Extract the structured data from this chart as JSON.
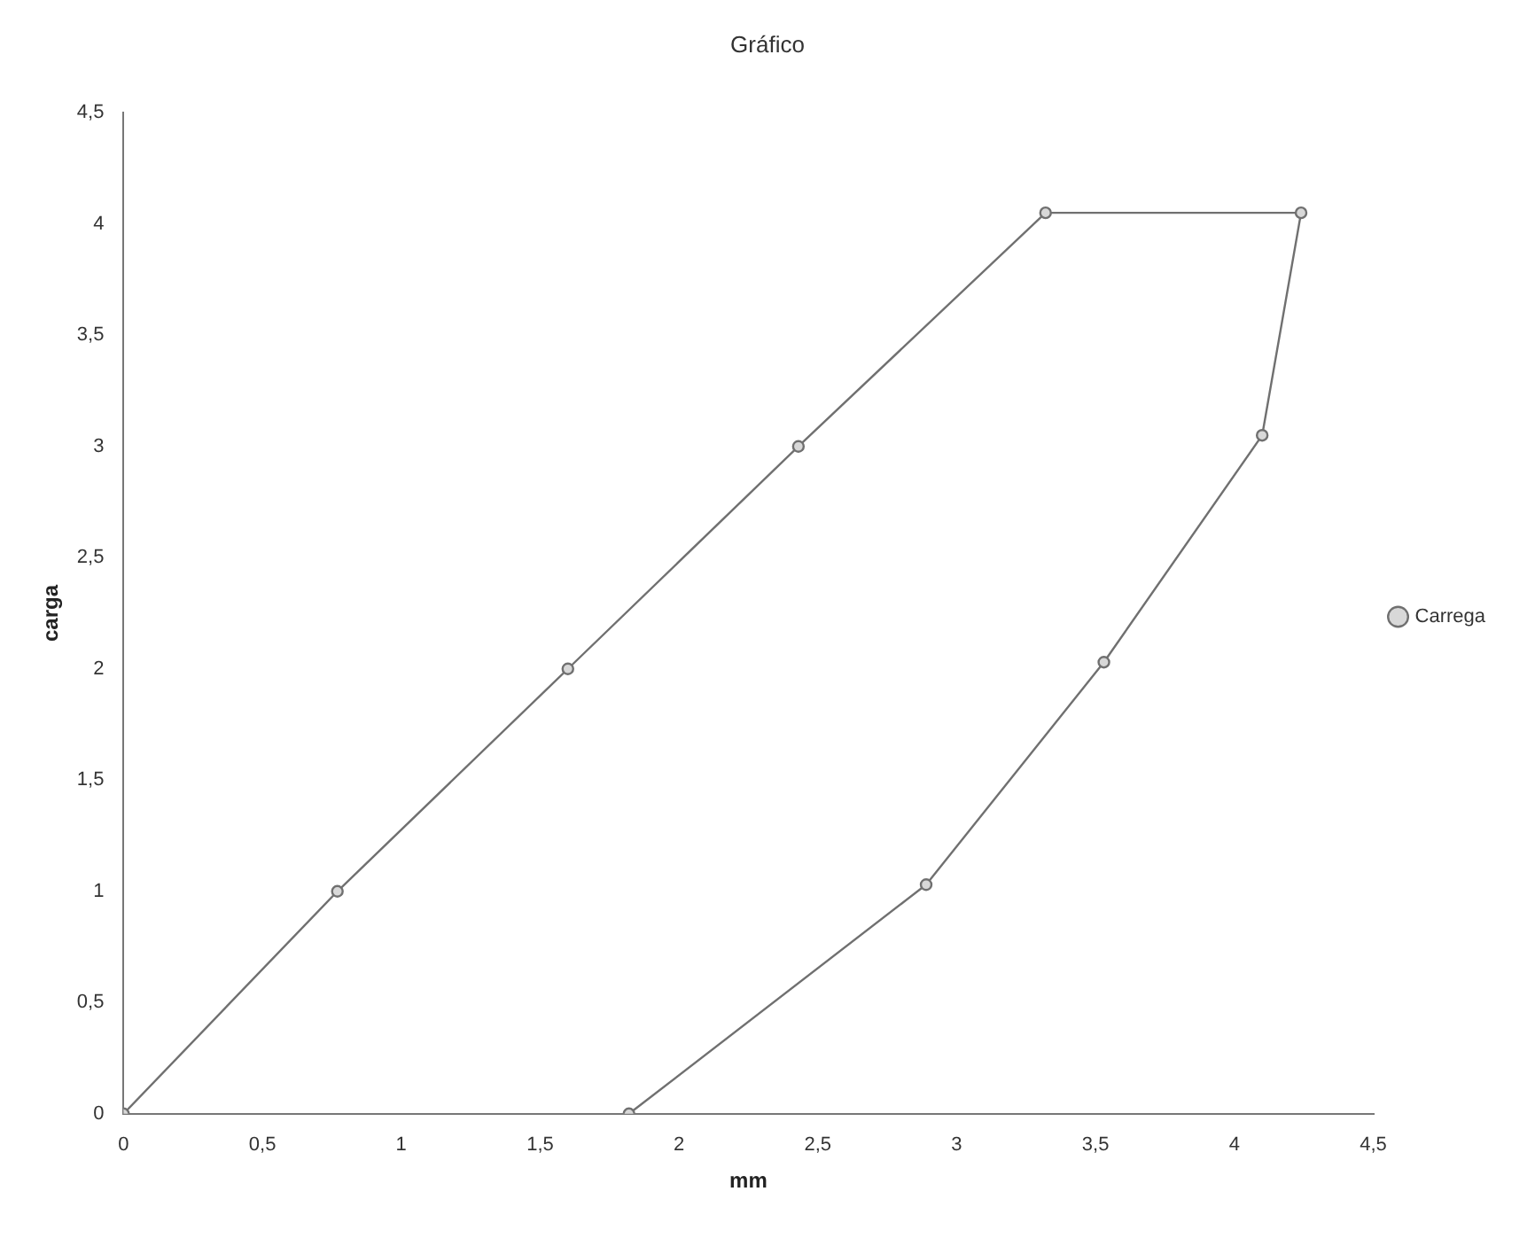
{
  "chart_data": {
    "type": "line",
    "title": "Gráfico",
    "xlabel": "mm",
    "ylabel": "carga",
    "series": [
      {
        "name": "Carrega",
        "color": "#707070",
        "x": [
          0,
          0.77,
          1.6,
          2.43,
          3.32,
          4.24,
          4.1,
          3.53,
          2.89,
          1.82
        ],
        "values": [
          0,
          1,
          2,
          3,
          4.05,
          4.05,
          3.05,
          2.03,
          1.03,
          0
        ]
      }
    ],
    "xlim": [
      0,
      4.5
    ],
    "ylim": [
      0,
      4.5
    ],
    "xticks": [
      0,
      {
        "value": 0.5,
        "label": "0,5"
      },
      1,
      {
        "value": 1.5,
        "label": "1,5"
      },
      2,
      {
        "value": 2.5,
        "label": "2,5"
      },
      3,
      {
        "value": 3.5,
        "label": "3,5"
      },
      4,
      {
        "value": 4.5,
        "label": "4,5"
      }
    ],
    "yticks": [
      0,
      {
        "value": 0.5,
        "label": "0,5"
      },
      1,
      {
        "value": 1.5,
        "label": "1,5"
      },
      2,
      {
        "value": 2.5,
        "label": "2,5"
      },
      3,
      {
        "value": 3.5,
        "label": "3,5"
      },
      4,
      {
        "value": 4.5,
        "label": "4,5"
      }
    ],
    "grid": false,
    "legend": "right",
    "marker": "circle",
    "line_style": "solid"
  }
}
